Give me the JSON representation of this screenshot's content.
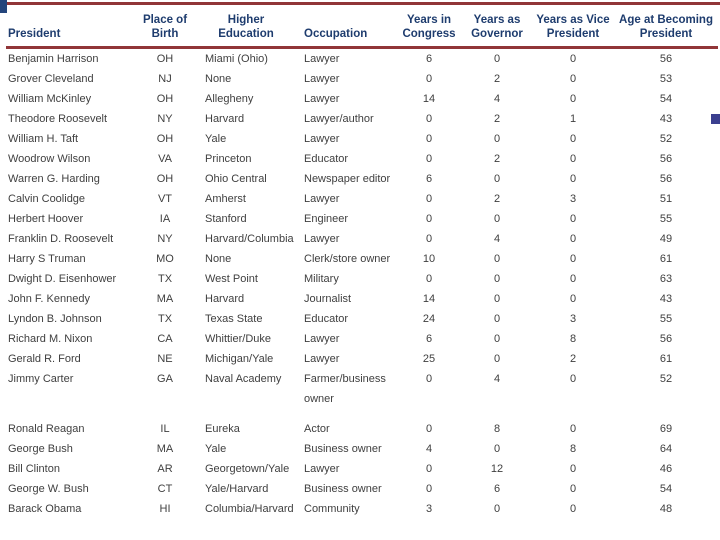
{
  "decor": {
    "top_rule_color": "#913538",
    "header_rule_color": "#913538",
    "left_block_color": "#24457c",
    "right_square_color": "#3b3f8f",
    "header_text_color": "#1e3c6e"
  },
  "table": {
    "columns": [
      {
        "label": "President"
      },
      {
        "label": "Place of\nBirth"
      },
      {
        "label": "Higher\nEducation"
      },
      {
        "label": "Occupation"
      },
      {
        "label": "Years in\nCongress"
      },
      {
        "label": "Years as\nGovernor"
      },
      {
        "label": "Years as Vice\nPresident"
      },
      {
        "label": "Age at Becoming\nPresident"
      }
    ],
    "rows": [
      [
        "Benjamin Harrison",
        "OH",
        "Miami (Ohio)",
        "Lawyer",
        "6",
        "0",
        "0",
        "56"
      ],
      [
        "Grover Cleveland",
        "NJ",
        "None",
        "Lawyer",
        "0",
        "2",
        "0",
        "53"
      ],
      [
        "William McKinley",
        "OH",
        "Allegheny",
        "Lawyer",
        "14",
        "4",
        "0",
        "54"
      ],
      [
        "Theodore Roosevelt",
        "NY",
        "Harvard",
        "Lawyer/author",
        "0",
        "2",
        "1",
        "43"
      ],
      [
        "William H. Taft",
        "OH",
        "Yale",
        "Lawyer",
        "0",
        "0",
        "0",
        "52"
      ],
      [
        "Woodrow Wilson",
        "VA",
        "Princeton",
        "Educator",
        "0",
        "2",
        "0",
        "56"
      ],
      [
        "Warren G. Harding",
        "OH",
        "Ohio Central",
        "Newspaper editor",
        "6",
        "0",
        "0",
        "56"
      ],
      [
        "Calvin Coolidge",
        "VT",
        "Amherst",
        "Lawyer",
        "0",
        "2",
        "3",
        "51"
      ],
      [
        "Herbert Hoover",
        "IA",
        "Stanford",
        "Engineer",
        "0",
        "0",
        "0",
        "55"
      ],
      [
        "Franklin D. Roosevelt",
        "NY",
        "Harvard/Columbia",
        "Lawyer",
        "0",
        "4",
        "0",
        "49"
      ],
      [
        "Harry S Truman",
        "MO",
        "None",
        "Clerk/store owner",
        "10",
        "0",
        "0",
        "61"
      ],
      [
        "Dwight D. Eisenhower",
        "TX",
        "West Point",
        "Military",
        "0",
        "0",
        "0",
        "63"
      ],
      [
        "John F. Kennedy",
        "MA",
        "Harvard",
        "Journalist",
        "14",
        "0",
        "0",
        "43"
      ],
      [
        "Lyndon B. Johnson",
        "TX",
        "Texas State",
        "Educator",
        "24",
        "0",
        "3",
        "55"
      ],
      [
        "Richard M. Nixon",
        "CA",
        "Whittier/Duke",
        "Lawyer",
        "6",
        "0",
        "8",
        "56"
      ],
      [
        "Gerald R. Ford",
        "NE",
        "Michigan/Yale",
        "Lawyer",
        "25",
        "0",
        "2",
        "61"
      ],
      [
        "Jimmy Carter",
        "GA",
        "Naval Academy",
        "Farmer/business owner",
        "0",
        "4",
        "0",
        "52"
      ],
      [
        "Ronald Reagan",
        "IL",
        "Eureka",
        "Actor",
        "0",
        "8",
        "0",
        "69"
      ],
      [
        "George Bush",
        "MA",
        "Yale",
        "Business owner",
        "4",
        "0",
        "8",
        "64"
      ],
      [
        "Bill Clinton",
        "AR",
        "Georgetown/Yale",
        "Lawyer",
        "0",
        "12",
        "0",
        "46"
      ],
      [
        "George W. Bush",
        "CT",
        "Yale/Harvard",
        "Business owner",
        "0",
        "6",
        "0",
        "54"
      ],
      [
        "Barack Obama",
        "HI",
        "Columbia/Harvard",
        "Community",
        "3",
        "0",
        "0",
        "48"
      ]
    ],
    "gap_after": [
      16
    ]
  }
}
